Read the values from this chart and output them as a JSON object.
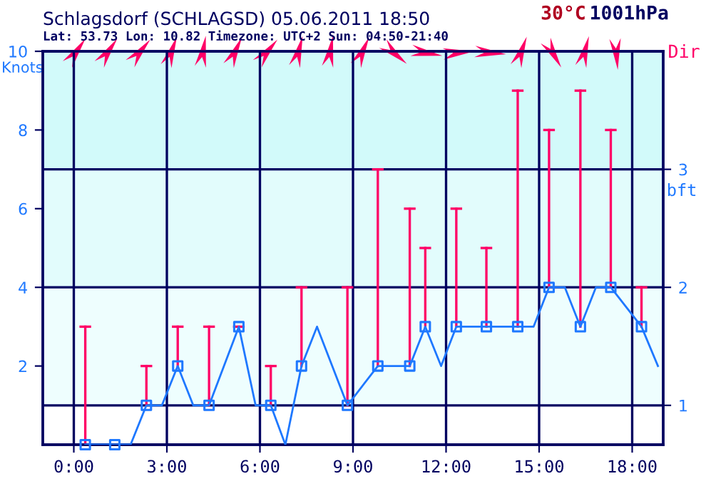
{
  "chart_data": {
    "type": "line",
    "title": "Schlagsdorf (SCHLAGSD) 05.06.2011 18:50",
    "subtitle": "Lat: 53.73 Lon: 10.82 Timezone: UTC+2 Sun: 04:50-21:40",
    "ylabel": "Knots",
    "y2label": "bft",
    "annotations": [
      "30°C",
      "1001hPa",
      "Dir"
    ],
    "xlim": [
      -1,
      19
    ],
    "xticks": [
      {
        "value": 0,
        "label": "0:00"
      },
      {
        "value": 3,
        "label": "3:00"
      },
      {
        "value": 6,
        "label": "6:00"
      },
      {
        "value": 9,
        "label": "9:00"
      },
      {
        "value": 12,
        "label": "12:00"
      },
      {
        "value": 15,
        "label": "15:00"
      },
      {
        "value": 18,
        "label": "18:00"
      }
    ],
    "ylim": [
      0,
      10
    ],
    "yticks": [
      2,
      4,
      6,
      8,
      10
    ],
    "y2lim": [
      0.6667,
      4
    ],
    "y2ticks": [
      1,
      2,
      3
    ],
    "grid": true,
    "bands": [
      {
        "axis": "y",
        "from": 1,
        "to": 4,
        "color": "#eefefe"
      },
      {
        "axis": "y",
        "from": 4,
        "to": 7,
        "color": "#e2fcfc"
      },
      {
        "axis": "y",
        "from": 7,
        "to": 10,
        "color": "#d2fafa"
      }
    ],
    "series": [
      {
        "color": "#1e78ff",
        "marker": "none",
        "x": [
          0.37,
          1.32,
          1.83,
          2.34,
          2.84,
          3.35,
          3.85,
          4.36,
          5.32,
          5.86,
          6.35,
          6.82,
          7.34,
          7.84,
          8.82,
          9.8,
          10.83,
          11.33,
          11.84,
          12.33,
          13.3,
          14.31,
          14.82,
          15.32,
          15.83,
          16.33,
          16.83,
          17.31,
          18.3,
          18.83
        ],
        "values": [
          0,
          0,
          0,
          1,
          1,
          2,
          1,
          1,
          3,
          1,
          1,
          0,
          2,
          3,
          1,
          2,
          2,
          3,
          2,
          3,
          3,
          3,
          3,
          4,
          4,
          3,
          4,
          4,
          3,
          2
        ]
      },
      {
        "type": "scatter",
        "color": "#1e78ff",
        "marker": "square",
        "x": [
          0.37,
          1.32,
          2.34,
          3.35,
          4.36,
          5.32,
          6.35,
          7.34,
          8.82,
          9.8,
          10.83,
          11.33,
          12.33,
          13.3,
          14.31,
          15.32,
          16.33,
          17.31,
          18.3
        ],
        "values": [
          0,
          0,
          1,
          2,
          1,
          3,
          1,
          2,
          1,
          2,
          2,
          3,
          3,
          3,
          3,
          4,
          3,
          4,
          3
        ],
        "errors": [
          [
            0,
            3
          ],
          null,
          [
            1,
            2
          ],
          [
            2,
            3
          ],
          [
            1,
            3
          ],
          [
            3,
            3
          ],
          [
            1,
            2
          ],
          [
            2,
            4
          ],
          [
            1,
            4
          ],
          [
            2,
            7
          ],
          [
            2,
            6
          ],
          [
            3,
            5
          ],
          [
            3,
            6
          ],
          [
            3,
            5
          ],
          [
            3,
            9
          ],
          [
            4,
            8
          ],
          [
            3,
            9
          ],
          [
            4,
            8
          ],
          [
            3,
            4
          ]
        ]
      }
    ]
  }
}
